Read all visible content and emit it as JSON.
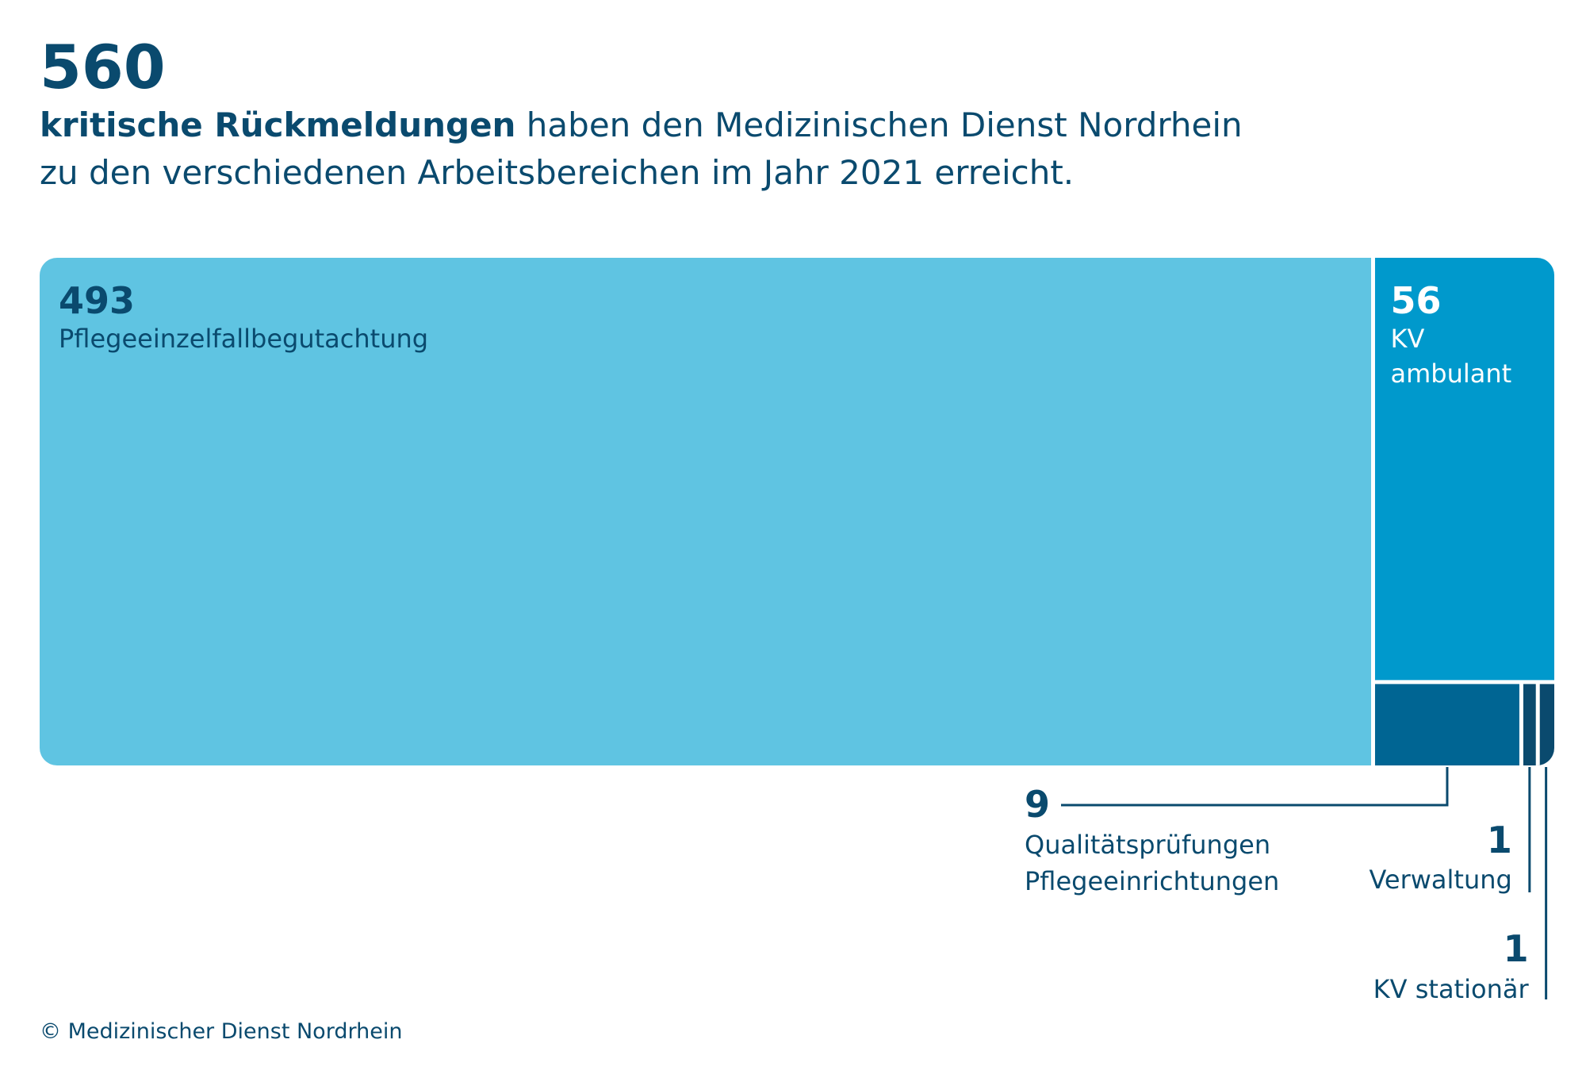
{
  "header": {
    "total": "560",
    "subtitle_bold": "kritische Rückmeldungen",
    "subtitle_rest_line1": " haben den Medizinischen Dienst Nordrhein",
    "subtitle_line2": "zu den verschiedenen Arbeitsbereichen im Jahr 2021 erreicht."
  },
  "footer": {
    "credit": "© Medizinischer Dienst Nordrhein"
  },
  "colors": {
    "text": "#0a4a6e",
    "light_blue": "#5fc4e2",
    "mid_blue": "#0099cc",
    "dark_blue": "#006593",
    "darkest_blue": "#0a4a6e",
    "separator": "#ffffff"
  },
  "chart_data": {
    "type": "treemap",
    "total": 560,
    "items": [
      {
        "value": 493,
        "value_label": "493",
        "label_lines": [
          "Pflegeeinzelfallbegutachtung"
        ],
        "color": "#5fc4e2"
      },
      {
        "value": 56,
        "value_label": "56",
        "label_lines": [
          "KV",
          "ambulant"
        ],
        "color": "#0099cc"
      },
      {
        "value": 9,
        "value_label": "9",
        "label_lines": [
          "Qualitätsprüfungen",
          "Pflegeeinrichtungen"
        ],
        "color": "#006593"
      },
      {
        "value": 1,
        "value_label": "1",
        "label_lines": [
          "Verwaltung"
        ],
        "color": "#0a4a6e"
      },
      {
        "value": 1,
        "value_label": "1",
        "label_lines": [
          "KV stationär"
        ],
        "color": "#0a4a6e"
      }
    ]
  }
}
